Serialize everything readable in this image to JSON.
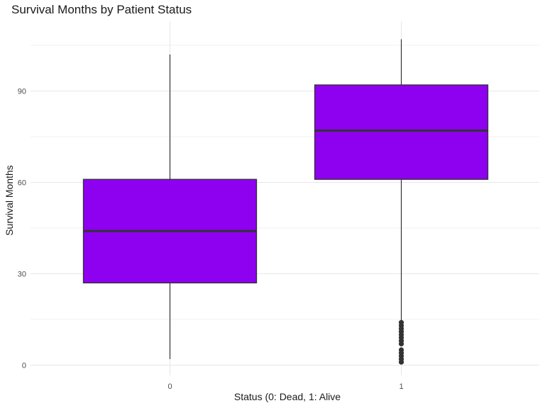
{
  "chart_data": {
    "type": "box",
    "title": "Survival Months by Patient Status",
    "xlabel": "Status (0: Dead, 1: Alive",
    "ylabel": "Survival Months",
    "categories": [
      "0",
      "1"
    ],
    "ylim": [
      -2,
      110
    ],
    "yticks": [
      0,
      30,
      60,
      90
    ],
    "grid": true,
    "fill_color": "#8E00F0",
    "line_color": "#333333",
    "boxes": [
      {
        "category": "0",
        "min": 2,
        "q1": 27,
        "median": 44,
        "q3": 61,
        "max": 102,
        "outliers": []
      },
      {
        "category": "1",
        "min": 14,
        "q1": 61,
        "median": 77,
        "q3": 92,
        "max": 107,
        "outliers": [
          1,
          2,
          3,
          4,
          5,
          7,
          8,
          9,
          10,
          11,
          12,
          13,
          14
        ]
      }
    ]
  }
}
